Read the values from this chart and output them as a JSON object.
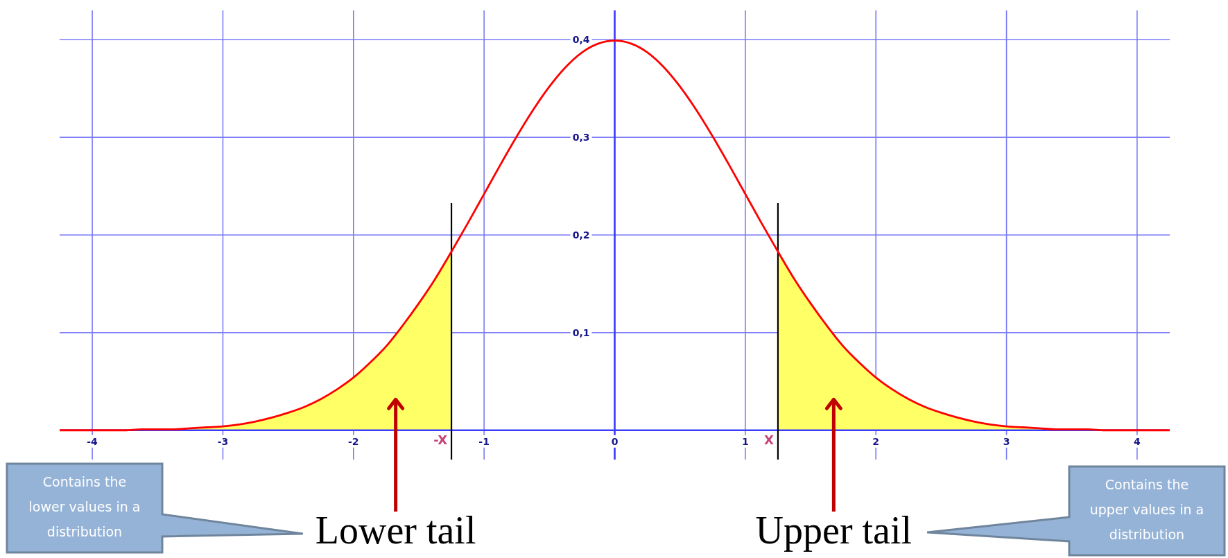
{
  "chart_data": {
    "type": "line",
    "xlim": [
      -4.25,
      4.25
    ],
    "ylim": [
      -0.03,
      0.43
    ],
    "xticks": [
      -4,
      -3,
      -2,
      -1,
      0,
      1,
      2,
      3,
      4
    ],
    "yticks": [
      {
        "value": 0.1,
        "label": "0,1"
      },
      {
        "value": 0.2,
        "label": "0,2"
      },
      {
        "value": 0.3,
        "label": "0,3"
      },
      {
        "value": 0.4,
        "label": "0,4"
      }
    ],
    "grid": true,
    "series": [
      {
        "type": "area",
        "name": "Lower tail",
        "color": "#ffff66",
        "x": [
          -4.25,
          -4.125,
          -4,
          -3.875,
          -3.75,
          -3.625,
          -3.5,
          -3.375,
          -3.25,
          -3.125,
          -3,
          -2.875,
          -2.75,
          -2.625,
          -2.5,
          -2.375,
          -2.25,
          -2.125,
          -2,
          -1.875,
          -1.75,
          -1.625,
          -1.5,
          -1.375,
          -1.25
        ],
        "values": [
          0,
          0,
          0,
          0,
          0,
          0.001,
          0.001,
          0.001,
          0.002,
          0.003,
          0.004,
          0.006,
          0.009,
          0.013,
          0.018,
          0.024,
          0.032,
          0.042,
          0.054,
          0.069,
          0.086,
          0.107,
          0.13,
          0.155,
          0.183
        ]
      },
      {
        "type": "area",
        "name": "Upper tail",
        "color": "#ffff66",
        "x": [
          1.25,
          1.375,
          1.5,
          1.625,
          1.75,
          1.875,
          2,
          2.125,
          2.25,
          2.375,
          2.5,
          2.625,
          2.75,
          2.875,
          3,
          3.125,
          3.25,
          3.375,
          3.5,
          3.625,
          3.75,
          3.875,
          4,
          4.125,
          4.25
        ],
        "values": [
          0.183,
          0.155,
          0.13,
          0.107,
          0.086,
          0.069,
          0.054,
          0.042,
          0.032,
          0.024,
          0.018,
          0.013,
          0.009,
          0.006,
          0.004,
          0.003,
          0.002,
          0.001,
          0.001,
          0.001,
          0,
          0,
          0,
          0,
          0
        ]
      },
      {
        "color": "#ff0000",
        "x": [
          -4.25,
          -4.125,
          -4,
          -3.875,
          -3.75,
          -3.625,
          -3.5,
          -3.375,
          -3.25,
          -3.125,
          -3,
          -2.875,
          -2.75,
          -2.625,
          -2.5,
          -2.375,
          -2.25,
          -2.125,
          -2,
          -1.875,
          -1.75,
          -1.625,
          -1.5,
          -1.375,
          -1.25,
          -1.125,
          -1,
          -0.875,
          -0.75,
          -0.625,
          -0.5,
          -0.375,
          -0.25,
          -0.125,
          0,
          0.125,
          0.25,
          0.375,
          0.5,
          0.625,
          0.75,
          0.875,
          1,
          1.125,
          1.25,
          1.375,
          1.5,
          1.625,
          1.75,
          1.875,
          2,
          2.125,
          2.25,
          2.375,
          2.5,
          2.625,
          2.75,
          2.875,
          3,
          3.125,
          3.25,
          3.375,
          3.5,
          3.625,
          3.75,
          3.875,
          4,
          4.125,
          4.25
        ],
        "values": [
          0,
          0,
          0,
          0,
          0,
          0.001,
          0.001,
          0.001,
          0.002,
          0.003,
          0.004,
          0.006,
          0.009,
          0.013,
          0.018,
          0.024,
          0.032,
          0.042,
          0.054,
          0.069,
          0.086,
          0.107,
          0.13,
          0.155,
          0.183,
          0.212,
          0.242,
          0.272,
          0.301,
          0.328,
          0.352,
          0.372,
          0.387,
          0.396,
          0.399,
          0.396,
          0.387,
          0.372,
          0.352,
          0.328,
          0.301,
          0.272,
          0.242,
          0.212,
          0.183,
          0.155,
          0.13,
          0.107,
          0.086,
          0.069,
          0.054,
          0.042,
          0.032,
          0.024,
          0.018,
          0.013,
          0.009,
          0.006,
          0.004,
          0.003,
          0.002,
          0.001,
          0.001,
          0.001,
          0,
          0,
          0,
          0,
          0
        ]
      }
    ],
    "ref_lines": [
      {
        "axis": "x",
        "value": -1.25,
        "label": "-X",
        "color": "#000000"
      },
      {
        "axis": "x",
        "value": 1.25,
        "label": "X",
        "color": "#000000"
      }
    ],
    "annotations": [
      "Contains the lower values in a distribution",
      "Contains the upper values in a distribution"
    ]
  }
}
